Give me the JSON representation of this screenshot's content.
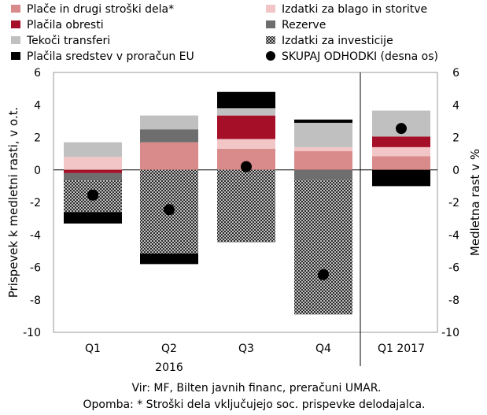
{
  "chart_data": {
    "type": "bar",
    "stacked": true,
    "categories": [
      "Q1",
      "Q2",
      "Q3",
      "Q4",
      "Q1 2017"
    ],
    "year_label": "2016",
    "ylabel_left": "Prispevek k medletni rasti, v o.t.",
    "ylabel_right": "Medletna rast v %",
    "ylim": [
      -10,
      6
    ],
    "yticks": [
      -10,
      -8,
      -6,
      -4,
      -2,
      0,
      2,
      4,
      6
    ],
    "grid": false,
    "legend_position": "top",
    "series": [
      {
        "name": "Plače in drugi stroški dela*",
        "color": "#d98a8a",
        "pattern": "none",
        "values": [
          0.0,
          1.7,
          1.3,
          1.15,
          0.85
        ]
      },
      {
        "name": "Izdatki za blago in storitve",
        "color": "#f2c6c6",
        "pattern": "none",
        "values": [
          0.8,
          0.0,
          0.6,
          0.25,
          0.55
        ]
      },
      {
        "name": "Plačila obresti",
        "color": "#a50f27",
        "pattern": "none",
        "values": [
          -0.2,
          0.0,
          1.45,
          0.0,
          0.65
        ]
      },
      {
        "name": "Rezerve",
        "color": "#6e6e6e",
        "pattern": "none",
        "values": [
          -0.45,
          0.8,
          0.0,
          -0.6,
          0.0
        ]
      },
      {
        "name": "Tekoči transferi",
        "color": "#c0c0c0",
        "pattern": "none",
        "values": [
          0.9,
          0.85,
          0.45,
          1.5,
          1.6
        ]
      },
      {
        "name": "Izdatki za investicije",
        "color": "#555555",
        "pattern": "hatch",
        "values": [
          -1.95,
          -5.15,
          -4.45,
          -8.3,
          0.0
        ]
      },
      {
        "name": "Plačila sredstev v proračun EU",
        "color": "#000000",
        "pattern": "none",
        "values": [
          -0.7,
          -0.65,
          1.0,
          0.2,
          -1.0
        ]
      }
    ],
    "total": {
      "name": "SKUPAJ ODHODKI (desna os)",
      "values": [
        -1.55,
        -2.45,
        0.2,
        -6.45,
        2.55
      ]
    }
  },
  "notes": {
    "source": "Vir: MF, Bilten javnih financ, preračuni UMAR.",
    "footnote": "Opomba: * Stroški dela vključujejo soc. prispevke delodajalca."
  }
}
